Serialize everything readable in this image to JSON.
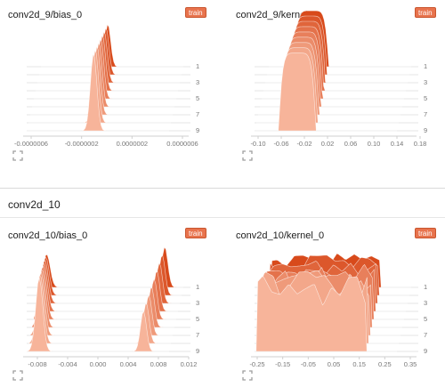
{
  "section": {
    "title": "conv2d_10"
  },
  "icons": {
    "expand": "expand-icon"
  },
  "colors": {
    "accent": "#e8734d",
    "fill_front": "#f7b49a",
    "fill_back": "#d84a1b"
  },
  "cards": [
    {
      "title": "conv2d_9/bias_0",
      "run": "train",
      "chart_data": {
        "type": "area",
        "xlabel": "",
        "ylabel": "",
        "x_ticks": [
          "-0.0000006",
          "-0.0000002",
          "0.0000002",
          "0.0000006"
        ],
        "steps": [
          "1",
          "3",
          "5",
          "7",
          "9"
        ],
        "shape": "peak",
        "peak_at": "0.0000000"
      }
    },
    {
      "title": "conv2d_9/kernel_0",
      "run": "train",
      "chart_data": {
        "type": "area",
        "xlabel": "",
        "ylabel": "",
        "x_ticks": [
          "-0.10",
          "-0.06",
          "-0.02",
          "0.02",
          "0.06",
          "0.10",
          "0.14",
          "0.18"
        ],
        "steps": [
          "1",
          "3",
          "5",
          "7",
          "9"
        ],
        "shape": "plateau",
        "range": [
          -0.05,
          0.04
        ]
      }
    },
    {
      "title": "conv2d_10/bias_0",
      "run": "train",
      "chart_data": {
        "type": "area",
        "xlabel": "",
        "ylabel": "",
        "x_ticks": [
          "-0.008",
          "-0.004",
          "0.000",
          "0.004",
          "0.008",
          "0.012"
        ],
        "steps": [
          "1",
          "3",
          "5",
          "7",
          "9"
        ],
        "shape": "bimodal",
        "modes": [
          -0.008,
          0.008
        ]
      }
    },
    {
      "title": "conv2d_10/kernel_0",
      "run": "train",
      "chart_data": {
        "type": "area",
        "xlabel": "",
        "ylabel": "",
        "x_ticks": [
          "-0.25",
          "-0.15",
          "-0.05",
          "0.05",
          "0.15",
          "0.25",
          "0.35"
        ],
        "steps": [
          "1",
          "3",
          "5",
          "7",
          "9"
        ],
        "shape": "noisy",
        "range": [
          -0.27,
          0.28
        ]
      }
    }
  ]
}
